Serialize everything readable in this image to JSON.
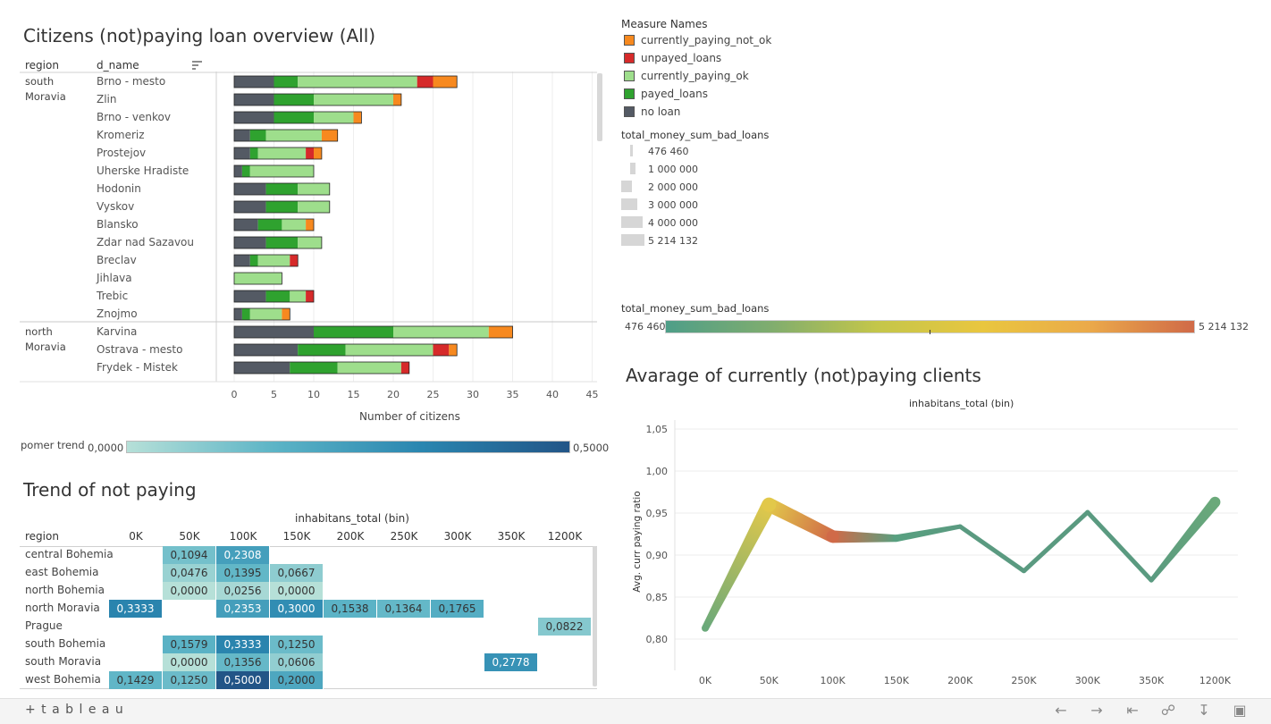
{
  "bar_chart": {
    "title": "Citizens (not)paying loan overview (All)",
    "col_region": "region",
    "col_name": "d_name",
    "xlabel": "Number of citizens",
    "xticks": [
      0,
      5,
      10,
      15,
      20,
      25,
      30,
      35,
      40,
      45
    ],
    "xmax": 45,
    "regions": [
      {
        "name_line1": "south",
        "name_line2": "Moravia"
      },
      {
        "name_line1": "north",
        "name_line2": "Moravia"
      }
    ]
  },
  "chart_data": [
    {
      "type": "bar",
      "orientation": "horizontal-stacked",
      "title": "Citizens (not)paying loan overview (All)",
      "xlabel": "Number of citizens",
      "xlim": [
        0,
        45
      ],
      "series_order": [
        "no loan",
        "payed_loans",
        "currently_paying_ok",
        "unpayed_loans",
        "currently_paying_not_ok"
      ],
      "rows": [
        {
          "region": "south Moravia",
          "name": "Brno - mesto",
          "values": [
            5,
            3,
            15,
            2,
            3
          ]
        },
        {
          "region": "south Moravia",
          "name": "Zlin",
          "values": [
            5,
            5,
            10,
            0,
            1
          ]
        },
        {
          "region": "south Moravia",
          "name": "Brno - venkov",
          "values": [
            5,
            5,
            5,
            0,
            1
          ]
        },
        {
          "region": "south Moravia",
          "name": "Kromeriz",
          "values": [
            2,
            2,
            7,
            0,
            2
          ]
        },
        {
          "region": "south Moravia",
          "name": "Prostejov",
          "values": [
            2,
            1,
            6,
            1,
            1
          ]
        },
        {
          "region": "south Moravia",
          "name": "Uherske Hradiste",
          "values": [
            1,
            1,
            8,
            0,
            0
          ]
        },
        {
          "region": "south Moravia",
          "name": "Hodonin",
          "values": [
            4,
            4,
            4,
            0,
            0
          ]
        },
        {
          "region": "south Moravia",
          "name": "Vyskov",
          "values": [
            4,
            4,
            4,
            0,
            0
          ]
        },
        {
          "region": "south Moravia",
          "name": "Blansko",
          "values": [
            3,
            3,
            3,
            0,
            1
          ]
        },
        {
          "region": "south Moravia",
          "name": "Zdar nad Sazavou",
          "values": [
            4,
            4,
            3,
            0,
            0
          ]
        },
        {
          "region": "south Moravia",
          "name": "Breclav",
          "values": [
            2,
            1,
            4,
            1,
            0
          ]
        },
        {
          "region": "south Moravia",
          "name": "Jihlava",
          "values": [
            0,
            0,
            6,
            0,
            0
          ]
        },
        {
          "region": "south Moravia",
          "name": "Trebic",
          "values": [
            4,
            3,
            2,
            1,
            0
          ]
        },
        {
          "region": "south Moravia",
          "name": "Znojmo",
          "values": [
            1,
            1,
            4,
            0,
            1
          ]
        },
        {
          "region": "north Moravia",
          "name": "Karvina",
          "values": [
            10,
            10,
            12,
            0,
            3
          ]
        },
        {
          "region": "north Moravia",
          "name": "Ostrava - mesto",
          "values": [
            8,
            6,
            11,
            2,
            1
          ]
        },
        {
          "region": "north Moravia",
          "name": "Frydek - Mistek",
          "values": [
            7,
            6,
            8,
            1,
            0
          ]
        }
      ]
    },
    {
      "type": "heatmap",
      "title": "Trend of not paying",
      "xlabel": "inhabitans_total (bin)",
      "row_header": "region",
      "columns": [
        "0K",
        "50K",
        "100K",
        "150K",
        "200K",
        "250K",
        "300K",
        "350K",
        "1200K"
      ],
      "rows": [
        {
          "region": "central Bohemia",
          "cells": [
            null,
            "0,1094",
            "0,2308",
            null,
            null,
            null,
            null,
            null,
            null
          ],
          "values": [
            null,
            0.1094,
            0.2308,
            null,
            null,
            null,
            null,
            null,
            null
          ]
        },
        {
          "region": "east Bohemia",
          "cells": [
            null,
            "0,0476",
            "0,1395",
            "0,0667",
            null,
            null,
            null,
            null,
            null
          ],
          "values": [
            null,
            0.0476,
            0.1395,
            0.0667,
            null,
            null,
            null,
            null,
            null
          ]
        },
        {
          "region": "north Bohemia",
          "cells": [
            null,
            "0,0000",
            "0,0256",
            "0,0000",
            null,
            null,
            null,
            null,
            null
          ],
          "values": [
            null,
            0.0,
            0.0256,
            0.0,
            null,
            null,
            null,
            null,
            null
          ]
        },
        {
          "region": "north Moravia",
          "cells": [
            "0,3333",
            null,
            "0,2353",
            "0,3000",
            "0,1538",
            "0,1364",
            "0,1765",
            null,
            null
          ],
          "values": [
            0.3333,
            null,
            0.2353,
            0.3,
            0.1538,
            0.1364,
            0.1765,
            null,
            null
          ]
        },
        {
          "region": "Prague",
          "cells": [
            null,
            null,
            null,
            null,
            null,
            null,
            null,
            null,
            "0,0822"
          ],
          "values": [
            null,
            null,
            null,
            null,
            null,
            null,
            null,
            null,
            0.0822
          ]
        },
        {
          "region": "south Bohemia",
          "cells": [
            null,
            "0,1579",
            "0,3333",
            "0,1250",
            null,
            null,
            null,
            null,
            null
          ],
          "values": [
            null,
            0.1579,
            0.3333,
            0.125,
            null,
            null,
            null,
            null,
            null
          ]
        },
        {
          "region": "south Moravia",
          "cells": [
            null,
            "0,0000",
            "0,1356",
            "0,0606",
            null,
            null,
            null,
            "0,2778",
            null
          ],
          "values": [
            null,
            0.0,
            0.1356,
            0.0606,
            null,
            null,
            null,
            0.2778,
            null
          ]
        },
        {
          "region": "west Bohemia",
          "cells": [
            "0,1429",
            "0,1250",
            "0,5000",
            "0,2000",
            null,
            null,
            null,
            null,
            null
          ],
          "values": [
            0.1429,
            0.125,
            0.5,
            0.2,
            null,
            null,
            null,
            null,
            null
          ]
        }
      ],
      "color_legend": {
        "label": "pomer trend",
        "min_label": "0,0000",
        "max_label": "0,5000",
        "min": 0,
        "max": 0.5
      }
    },
    {
      "type": "line",
      "title": "Avarage of currently (not)paying clients",
      "xlabel": "inhabitans_total (bin)",
      "ylabel": "Avg. curr paying ratio",
      "x": [
        "0K",
        "50K",
        "100K",
        "150K",
        "200K",
        "250K",
        "300K",
        "350K",
        "1200K"
      ],
      "y": [
        0.813,
        0.96,
        0.922,
        0.92,
        0.934,
        0.881,
        0.951,
        0.87,
        0.963
      ],
      "ylim": [
        0.78,
        1.06
      ],
      "yticks": [
        "0,80",
        "0,85",
        "0,90",
        "0,95",
        "1,00",
        "1,05"
      ],
      "ytick_values": [
        0.8,
        0.85,
        0.9,
        0.95,
        1.0,
        1.05
      ]
    }
  ],
  "legend": {
    "measure_title": "Measure Names",
    "measures": [
      {
        "name": "currently_paying_not_ok",
        "color": "#f7891f"
      },
      {
        "name": "unpayed_loans",
        "color": "#d62a2a"
      },
      {
        "name": "currently_paying_ok",
        "color": "#9ede8c"
      },
      {
        "name": "payed_loans",
        "color": "#2fa22f"
      },
      {
        "name": "no loan",
        "color": "#545a64"
      }
    ],
    "size_title": "total_money_sum_bad_loans",
    "sizes": [
      "476 460",
      "1 000 000",
      "2 000 000",
      "3 000 000",
      "4 000 000",
      "5 214 132"
    ],
    "color_title": "total_money_sum_bad_loans",
    "color_min": "476 460",
    "color_max": "5 214 132"
  },
  "footer": {
    "brand": "+ t a b l e a u"
  }
}
